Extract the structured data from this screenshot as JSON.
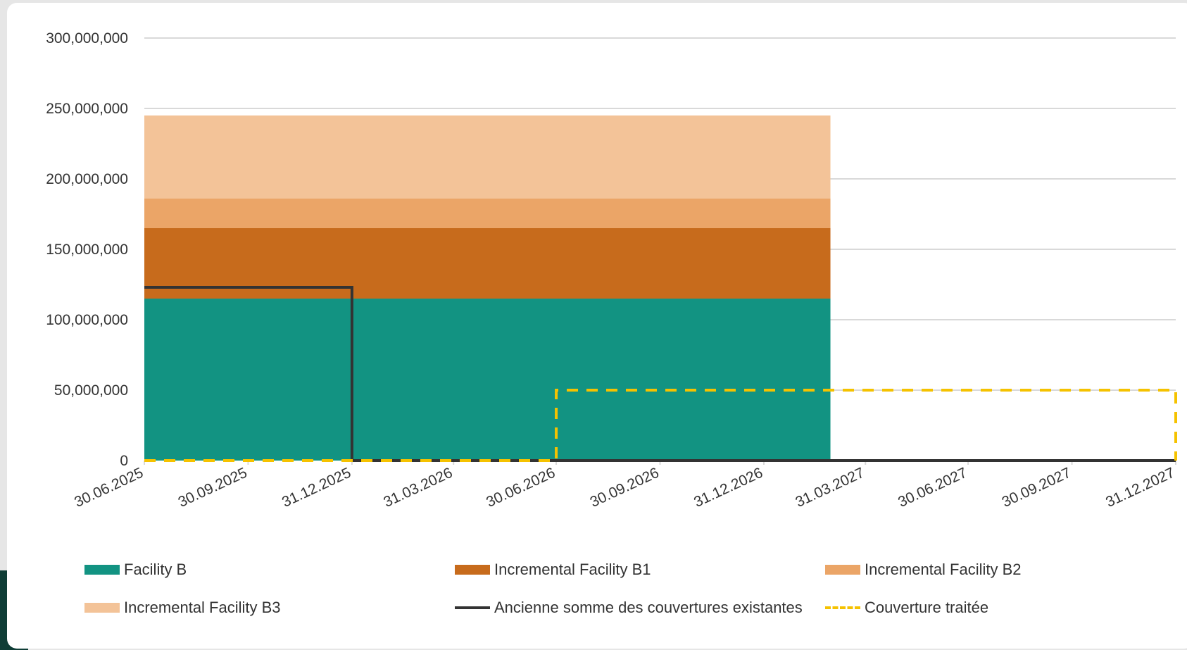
{
  "chart_data": {
    "type": "area",
    "x_ticks": [
      "30.06.2025",
      "30.09.2025",
      "31.12.2025",
      "31.03.2026",
      "30.06.2026",
      "30.09.2026",
      "31.12.2026",
      "31.03.2027",
      "30.06.2027",
      "30.09.2027",
      "31.12.2027"
    ],
    "y_ticks": [
      "300,000,000",
      "250,000,000",
      "200,000,000",
      "150,000,000",
      "100,000,000",
      "50,000,000",
      "0"
    ],
    "ylim": [
      0,
      300000000
    ],
    "xlim": [
      "30.06.2025",
      "31.12.2027"
    ],
    "grid": true,
    "legend_position": "bottom",
    "stacked_series": [
      {
        "name": "Facility B",
        "color": "#129382",
        "start": "30.06.2025",
        "end": "28.02.2027",
        "value": 115000000
      },
      {
        "name": "Incremental Facility B1",
        "color": "#c76b1c",
        "start": "30.06.2025",
        "end": "28.02.2027",
        "value": 50000000
      },
      {
        "name": "Incremental Facility B2",
        "color": "#eba567",
        "start": "30.06.2025",
        "end": "28.02.2027",
        "value": 21000000
      },
      {
        "name": "Incremental Facility B3",
        "color": "#f3c398",
        "start": "30.06.2025",
        "end": "28.02.2027",
        "value": 59000000
      }
    ],
    "step_series": [
      {
        "name": "Ancienne somme des couvertures existantes",
        "color": "#333333",
        "style": "solid",
        "points": [
          [
            "30.06.2025",
            123000000
          ],
          [
            "31.12.2025",
            123000000
          ],
          [
            "31.12.2025",
            0
          ],
          [
            "31.12.2027",
            0
          ]
        ]
      },
      {
        "name": "Couverture traitée",
        "color": "#f5c200",
        "style": "dashed",
        "points": [
          [
            "30.06.2025",
            0
          ],
          [
            "30.06.2026",
            0
          ],
          [
            "30.06.2026",
            50000000
          ],
          [
            "31.12.2027",
            50000000
          ],
          [
            "31.12.2027",
            0
          ]
        ]
      }
    ]
  },
  "legend": {
    "facility_b": "Facility B",
    "b1": "Incremental Facility B1",
    "b2": "Incremental Facility B2",
    "b3": "Incremental Facility B3",
    "ancienne": "Ancienne somme des couvertures existantes",
    "couverture": "Couverture traitée"
  }
}
